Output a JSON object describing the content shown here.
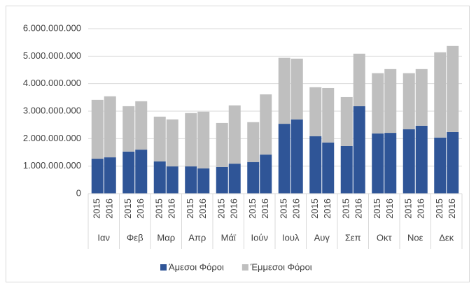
{
  "chart_data": {
    "type": "stacked-bar",
    "groups": [
      "Ιαν",
      "Φεβ",
      "Μαρ",
      "Απρ",
      "Μάϊ",
      "Ιούν",
      "Ιουλ",
      "Αυγ",
      "Σεπ",
      "Οκτ",
      "Νοε",
      "Δεκ"
    ],
    "categories": [
      "2015",
      "2016",
      "2015",
      "2016",
      "2015",
      "2016",
      "2015",
      "2016",
      "2015",
      "2016",
      "2015",
      "2016",
      "2015",
      "2016",
      "2015",
      "2016",
      "2015",
      "2016",
      "2015",
      "2016",
      "2015",
      "2016",
      "2015",
      "2016"
    ],
    "series": [
      {
        "name": "Άμεσοι Φόροι",
        "color": "#2f5597",
        "values": [
          1270000000,
          1320000000,
          1530000000,
          1600000000,
          1170000000,
          990000000,
          990000000,
          920000000,
          970000000,
          1090000000,
          1150000000,
          1420000000,
          2540000000,
          2700000000,
          2090000000,
          1860000000,
          1730000000,
          3180000000,
          2190000000,
          2210000000,
          2340000000,
          2470000000,
          2040000000,
          2240000000
        ]
      },
      {
        "name": "Έμμεσοι Φόροι",
        "color": "#bfbfbf",
        "values": [
          2140000000,
          2220000000,
          1650000000,
          1760000000,
          1630000000,
          1710000000,
          1940000000,
          2060000000,
          1600000000,
          2120000000,
          1450000000,
          2190000000,
          2400000000,
          2210000000,
          1780000000,
          1980000000,
          1780000000,
          1910000000,
          2190000000,
          2320000000,
          2040000000,
          2060000000,
          3100000000,
          3130000000
        ]
      }
    ],
    "ylim": [
      0,
      6000000000
    ],
    "yticks": [
      0,
      {
        "value": 1000000000,
        "label": "1.000.000.000"
      },
      {
        "value": 2000000000,
        "label": "2.000.000.000"
      },
      {
        "value": 3000000000,
        "label": "3.000.000.000"
      },
      {
        "value": 4000000000,
        "label": "4.000.000.000"
      },
      {
        "value": 5000000000,
        "label": "5.000.000.000"
      },
      {
        "value": 6000000000,
        "label": "6.000.000.000"
      }
    ],
    "grid": true,
    "legend": "bottom"
  }
}
